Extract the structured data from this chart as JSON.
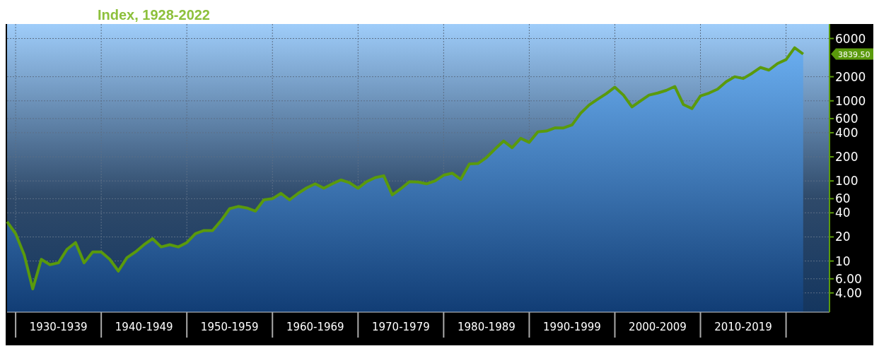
{
  "chart_data": {
    "type": "area",
    "title": "Index, 1928-2022",
    "categories": [
      null,
      null,
      null,
      null,
      null,
      null,
      "1930-1939",
      null,
      null,
      null,
      null,
      null,
      null,
      null,
      null,
      null,
      "1940-1949",
      null,
      null,
      null,
      null,
      null,
      null,
      null,
      null,
      null,
      "1950-1959",
      null,
      null,
      null,
      null,
      null,
      null,
      null,
      null,
      null,
      "1960-1969",
      null,
      null,
      null,
      null,
      null,
      null,
      null,
      null,
      null,
      "1970-1979",
      null,
      null,
      null,
      null,
      null,
      null,
      null,
      null,
      null,
      "1980-1989",
      null,
      null,
      null,
      null,
      null,
      null,
      null,
      null,
      null,
      "1990-1999",
      null,
      null,
      null,
      null,
      null,
      null,
      null,
      null,
      null,
      "2000-2009",
      null,
      null,
      null,
      null,
      null,
      null,
      null,
      null,
      null,
      "2010-2019",
      null,
      null,
      null,
      null,
      null,
      null,
      null
    ],
    "series": [
      {
        "color": "#5a9a0c",
        "values": [
          31,
          22,
          12,
          4.5,
          10.5,
          9,
          9.5,
          14,
          17,
          9.5,
          13,
          13,
          10.5,
          7.5,
          11,
          13,
          16,
          19,
          15,
          16,
          15,
          17,
          22,
          24,
          24,
          32,
          45,
          48,
          46,
          42,
          58,
          60,
          70,
          58,
          70,
          82,
          92,
          81,
          92,
          103,
          95,
          81,
          98,
          110,
          116,
          67,
          80,
          98,
          97,
          92,
          100,
          118,
          125,
          105,
          163,
          165,
          196,
          250,
          315,
          260,
          340,
          303,
          410,
          420,
          460,
          459,
          500,
          700,
          889,
          1050,
          1230,
          1480,
          1180,
          841,
          1000,
          1180,
          1250,
          1350,
          1510,
          900,
          800,
          1150,
          1250,
          1400,
          1730,
          2000,
          1900,
          2200,
          2610,
          2420,
          2920,
          3270,
          4600,
          3839.5
        ]
      }
    ],
    "ylim": [
      2.3,
      9100
    ],
    "yticks": [
      {
        "value": 4,
        "label": "4.00"
      },
      {
        "value": 6,
        "label": "6.00"
      },
      10,
      20,
      40,
      60,
      100,
      200,
      400,
      600,
      1000,
      2000,
      6000
    ],
    "log": true,
    "grid": true,
    "annotations": [
      "3839.50"
    ]
  }
}
